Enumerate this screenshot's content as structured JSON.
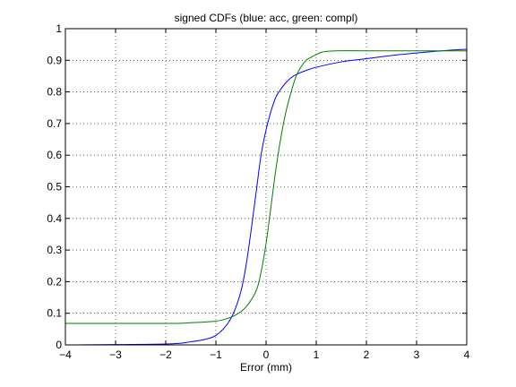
{
  "chart_data": {
    "type": "line",
    "title": "signed CDFs (blue: acc, green: compl)",
    "xlabel": "Error (mm)",
    "ylabel": "",
    "xlim": [
      -4,
      4
    ],
    "ylim": [
      0,
      1
    ],
    "xticks": [
      -4,
      -3,
      -2,
      -1,
      0,
      1,
      2,
      3,
      4
    ],
    "yticks": [
      0,
      0.1,
      0.2,
      0.3,
      0.4,
      0.5,
      0.6,
      0.7,
      0.8,
      0.9,
      1
    ],
    "xtick_labels": [
      "−4",
      "−3",
      "−2",
      "−1",
      "0",
      "1",
      "2",
      "3",
      "4"
    ],
    "ytick_labels": [
      "0",
      "0.1",
      "0.2",
      "0.3",
      "0.4",
      "0.5",
      "0.6",
      "0.7",
      "0.8",
      "0.9",
      "1"
    ],
    "grid": true,
    "grid_style": "dotted",
    "series": [
      {
        "color": "#0000ff",
        "x": [
          -4,
          -2.0,
          -1.5,
          -1.2,
          -1.0,
          -0.8,
          -0.65,
          -0.5,
          -0.4,
          -0.3,
          -0.2,
          -0.1,
          0.0,
          0.1,
          0.2,
          0.3,
          0.4,
          0.5,
          0.6,
          0.8,
          1.0,
          1.5,
          2.0,
          2.5,
          3.0,
          3.5,
          4.0
        ],
        "y": [
          0.0,
          0.003,
          0.01,
          0.018,
          0.03,
          0.06,
          0.1,
          0.17,
          0.25,
          0.36,
          0.48,
          0.6,
          0.68,
          0.74,
          0.785,
          0.81,
          0.83,
          0.845,
          0.855,
          0.868,
          0.878,
          0.895,
          0.905,
          0.915,
          0.923,
          0.93,
          0.935
        ]
      },
      {
        "color": "#008000",
        "x": [
          -4,
          -2.0,
          -1.5,
          -1.0,
          -0.8,
          -0.6,
          -0.4,
          -0.2,
          -0.1,
          0.0,
          0.1,
          0.2,
          0.3,
          0.4,
          0.5,
          0.6,
          0.7,
          0.8,
          0.9,
          1.0,
          1.1,
          1.2,
          1.4,
          2.0,
          3.0,
          4.0
        ],
        "y": [
          0.068,
          0.068,
          0.07,
          0.075,
          0.082,
          0.095,
          0.12,
          0.17,
          0.23,
          0.32,
          0.44,
          0.56,
          0.66,
          0.74,
          0.8,
          0.85,
          0.88,
          0.9,
          0.91,
          0.918,
          0.925,
          0.928,
          0.93,
          0.93,
          0.93,
          0.93
        ]
      }
    ]
  }
}
